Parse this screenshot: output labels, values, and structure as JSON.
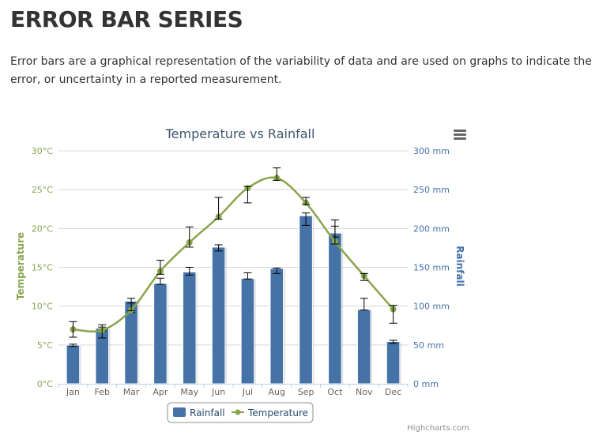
{
  "page": {
    "title": "ERROR BAR SERIES",
    "description": "Error bars are a graphical representation of the variability of data and are used on graphs to indicate the error, or uncertainty in a reported measurement."
  },
  "colors": {
    "rainfall": "#4572A7",
    "temperature": "#89A54E",
    "title": "#3E576F",
    "error_bar": "#000000",
    "grid": "#D8D8D8"
  },
  "icons": {
    "menu": "hamburger-menu-icon"
  },
  "credits": "Highcharts.com",
  "chart_data": {
    "type": "bar",
    "title": "Temperature vs Rainfall",
    "categories": [
      "Jan",
      "Feb",
      "Mar",
      "Apr",
      "May",
      "Jun",
      "Jul",
      "Aug",
      "Sep",
      "Oct",
      "Nov",
      "Dec"
    ],
    "left_axis": {
      "title": "Temperature",
      "unit": "°C",
      "min": 0,
      "max": 30,
      "ticks": [
        "0°C",
        "5°C",
        "10°C",
        "15°C",
        "20°C",
        "25°C",
        "30°C"
      ]
    },
    "right_axis": {
      "title": "Rainfall",
      "unit": "mm",
      "min": 0,
      "max": 300,
      "ticks": [
        "0 mm",
        "50 mm",
        "100 mm",
        "150 mm",
        "200 mm",
        "250 mm",
        "300 mm"
      ]
    },
    "grid": true,
    "legend_placement": "bottom-center",
    "series": [
      {
        "name": "Rainfall",
        "type": "column",
        "axis": "right",
        "values": [
          49.9,
          71.5,
          106.4,
          129.2,
          144.0,
          176.0,
          135.6,
          148.5,
          216.4,
          194.1,
          95.6,
          54.4
        ],
        "error_low": [
          48,
          68,
          92,
          128,
          140,
          171,
          135,
          142,
          204,
          189,
          95,
          52
        ],
        "error_high": [
          51,
          73,
          110,
          136,
          150,
          179,
          143,
          149,
          220,
          203,
          110,
          56
        ]
      },
      {
        "name": "Temperature",
        "type": "spline",
        "axis": "left",
        "values": [
          7.0,
          6.9,
          9.5,
          14.5,
          18.2,
          21.5,
          25.2,
          26.5,
          23.3,
          18.3,
          13.9,
          9.6
        ],
        "error_low": [
          6,
          5.9,
          9.4,
          14.1,
          17.6,
          21.2,
          23.3,
          26.2,
          23.1,
          18,
          13.3,
          7.8
        ],
        "error_high": [
          8,
          7.6,
          10.4,
          15.9,
          20.2,
          24,
          25.4,
          27.8,
          24,
          21.1,
          14.2,
          10.1
        ]
      }
    ]
  }
}
